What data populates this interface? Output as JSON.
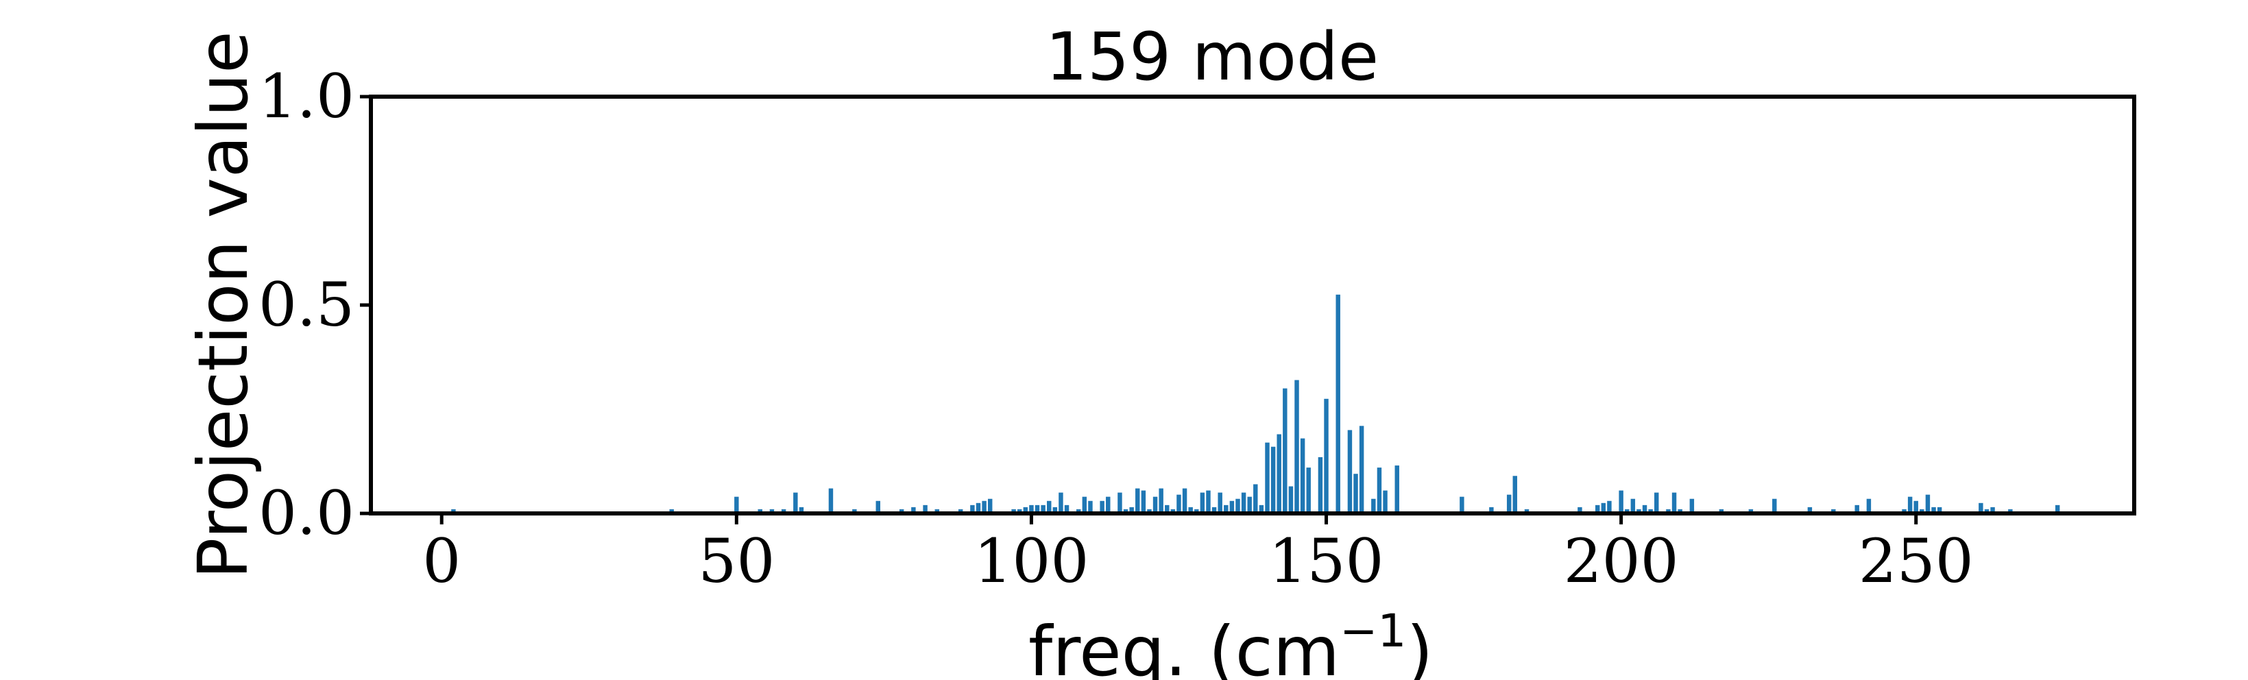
{
  "chart_data": {
    "type": "bar",
    "title": "159 mode",
    "xlabel": "freq. (cm",
    "xlabel_superscript": "−1",
    "xlabel_suffix": ")",
    "ylabel": "Projection value",
    "xlim": [
      -12,
      287
    ],
    "ylim": [
      0,
      1.0
    ],
    "xticks": [
      0,
      50,
      100,
      150,
      200,
      250
    ],
    "xtick_labels": [
      "0",
      "50",
      "100",
      "150",
      "200",
      "250"
    ],
    "yticks": [
      0.0,
      0.5,
      1.0
    ],
    "ytick_labels": [
      "0.0",
      "0.5",
      "1.0"
    ],
    "grid": false,
    "color": "#1f77b4",
    "bar_width": 0.75,
    "x": [
      2,
      39,
      50,
      54,
      56,
      58,
      60,
      61,
      66,
      70,
      74,
      78,
      80,
      82,
      84,
      88,
      90,
      91,
      92,
      93,
      97,
      98,
      99,
      100,
      101,
      102,
      103,
      104,
      105,
      106,
      108,
      109,
      110,
      112,
      113,
      115,
      116,
      117,
      118,
      119,
      120,
      121,
      122,
      123,
      124,
      125,
      126,
      127,
      128,
      129,
      130,
      131,
      132,
      133,
      134,
      135,
      136,
      137,
      138,
      139,
      140,
      141,
      142,
      143,
      144,
      145,
      146,
      147,
      149,
      150,
      152,
      154,
      155,
      156,
      158,
      159,
      160,
      162,
      173,
      178,
      181,
      182,
      184,
      193,
      196,
      197,
      198,
      200,
      201,
      202,
      203,
      204,
      205,
      206,
      208,
      209,
      210,
      212,
      217,
      222,
      226,
      232,
      236,
      240,
      242,
      248,
      249,
      250,
      251,
      252,
      253,
      254,
      261,
      262,
      263,
      266,
      274
    ],
    "values": [
      0.01,
      0.01,
      0.04,
      0.01,
      0.01,
      0.01,
      0.05,
      0.015,
      0.06,
      0.01,
      0.03,
      0.01,
      0.015,
      0.02,
      0.01,
      0.01,
      0.02,
      0.025,
      0.03,
      0.035,
      0.01,
      0.01,
      0.015,
      0.02,
      0.02,
      0.02,
      0.03,
      0.015,
      0.05,
      0.02,
      0.01,
      0.04,
      0.03,
      0.03,
      0.04,
      0.05,
      0.01,
      0.015,
      0.06,
      0.055,
      0.01,
      0.04,
      0.06,
      0.02,
      0.01,
      0.045,
      0.06,
      0.015,
      0.01,
      0.05,
      0.055,
      0.015,
      0.05,
      0.02,
      0.03,
      0.035,
      0.05,
      0.04,
      0.07,
      0.02,
      0.17,
      0.16,
      0.19,
      0.3,
      0.065,
      0.32,
      0.18,
      0.11,
      0.135,
      0.275,
      0.525,
      0.2,
      0.095,
      0.21,
      0.035,
      0.11,
      0.055,
      0.115,
      0.04,
      0.015,
      0.045,
      0.09,
      0.01,
      0.015,
      0.02,
      0.025,
      0.03,
      0.055,
      0.01,
      0.035,
      0.01,
      0.02,
      0.01,
      0.05,
      0.01,
      0.05,
      0.01,
      0.035,
      0.01,
      0.01,
      0.035,
      0.015,
      0.01,
      0.02,
      0.035,
      0.01,
      0.04,
      0.03,
      0.01,
      0.045,
      0.015,
      0.015,
      0.025,
      0.01,
      0.015,
      0.01,
      0.02
    ]
  }
}
